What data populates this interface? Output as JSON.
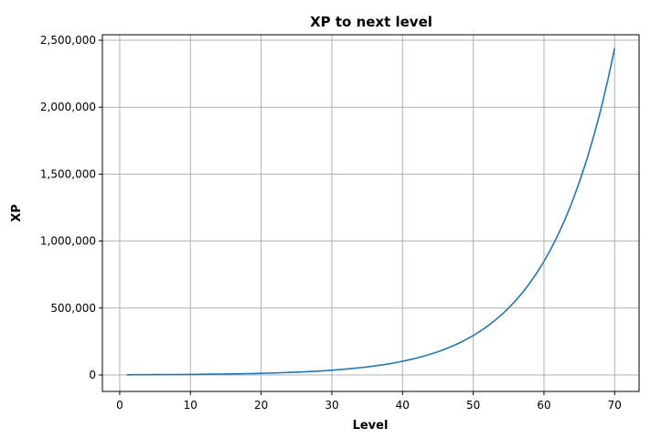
{
  "chart_data": {
    "type": "line",
    "title": "XP to next level",
    "xlabel": "Level",
    "ylabel": "XP",
    "xlim": [
      -2.45,
      73.45
    ],
    "ylim": [
      -123000,
      2541000
    ],
    "grid": true,
    "x_ticks": [
      0,
      10,
      20,
      30,
      40,
      50,
      60,
      70
    ],
    "x_tick_labels": [
      "0",
      "10",
      "20",
      "30",
      "40",
      "50",
      "60",
      "70"
    ],
    "y_ticks": [
      0,
      500000,
      1000000,
      1500000,
      2000000,
      2500000
    ],
    "y_tick_labels": [
      "0",
      "500,000",
      "1,000,000",
      "1,500,000",
      "2,000,000",
      "2,500,000"
    ],
    "series": [
      {
        "color": "#1f77b4",
        "x": [
          1,
          2,
          3,
          4,
          5,
          6,
          7,
          8,
          9,
          10,
          11,
          12,
          13,
          14,
          15,
          16,
          17,
          18,
          19,
          20,
          21,
          22,
          23,
          24,
          25,
          26,
          27,
          28,
          29,
          30,
          31,
          32,
          33,
          34,
          35,
          36,
          37,
          38,
          39,
          40,
          41,
          42,
          43,
          44,
          45,
          46,
          47,
          48,
          49,
          50,
          51,
          52,
          53,
          54,
          55,
          56,
          57,
          58,
          59,
          60,
          61,
          62,
          63,
          64,
          65,
          66,
          67,
          68,
          69,
          70
        ],
        "y": [
          1658,
          1843,
          2048,
          2277,
          2531,
          2813,
          3127,
          3475,
          3863,
          4294,
          4772,
          5304,
          5896,
          6553,
          7284,
          8096,
          8999,
          10002,
          11117,
          12357,
          13735,
          15266,
          16968,
          18860,
          20963,
          23300,
          25898,
          28786,
          31996,
          35564,
          39529,
          43937,
          48836,
          54281,
          60334,
          67061,
          74539,
          82850,
          92088,
          102356,
          113769,
          126454,
          140554,
          156226,
          173645,
          193006,
          214526,
          238446,
          265033,
          294584,
          327430,
          363939,
          404518,
          449622,
          499755,
          555478,
          617414,
          686256,
          762774,
          847823,
          942355,
          1047428,
          1164216,
          1294026,
          1438310,
          1598682,
          1776935,
          1975063,
          2195283,
          2440057
        ]
      }
    ]
  }
}
